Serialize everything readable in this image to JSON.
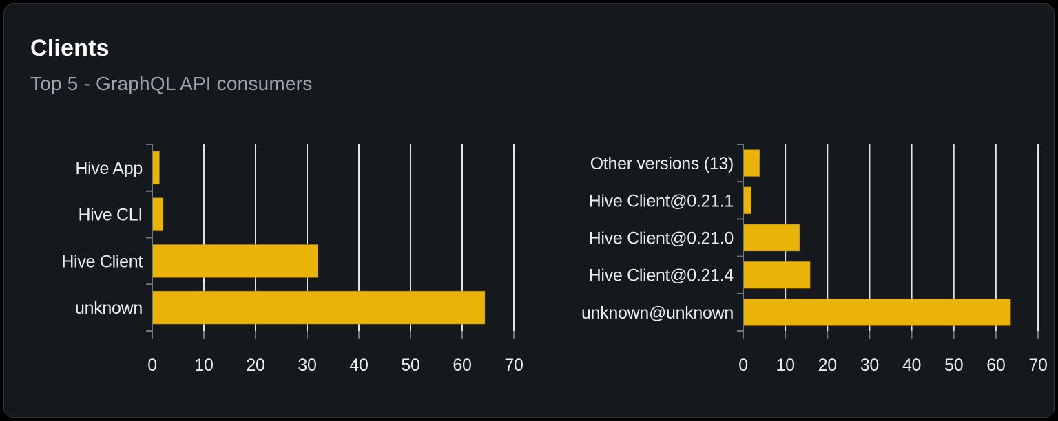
{
  "card": {
    "title": "Clients",
    "subtitle": "Top 5 - GraphQL API consumers"
  },
  "colors": {
    "bar": "#eab308",
    "bar_edge": "#8f6e07",
    "grid": "#dfe2e7",
    "axis": "#70757f",
    "label": "#e9ebee",
    "title": "#ffffff",
    "subtitle": "#9aa2ac",
    "card_bg": "#15181d",
    "card_border": "#2c3036",
    "page_bg": "#000000"
  },
  "chart_data": [
    {
      "type": "bar",
      "name": "clients",
      "orientation": "horizontal",
      "title": "",
      "xlabel": "",
      "ylabel": "",
      "categories": [
        "Hive App",
        "Hive CLI",
        "Hive Client",
        "unknown"
      ],
      "values": [
        1.4,
        2.1,
        32.1,
        64.4
      ],
      "x_ticks": [
        0,
        10,
        20,
        30,
        40,
        50,
        60,
        70
      ],
      "xlim": [
        0,
        70
      ],
      "grid": true,
      "legend": false
    },
    {
      "type": "bar",
      "name": "client-versions",
      "orientation": "horizontal",
      "title": "",
      "xlabel": "",
      "ylabel": "",
      "categories": [
        "Other versions (13)",
        "Hive Client@0.21.1",
        "Hive Client@0.21.0",
        "Hive Client@0.21.4",
        "unknown@unknown"
      ],
      "values": [
        3.9,
        1.9,
        13.4,
        15.9,
        63.5
      ],
      "x_ticks": [
        0,
        10,
        20,
        30,
        40,
        50,
        60,
        70
      ],
      "xlim": [
        0,
        70
      ],
      "grid": true,
      "legend": false
    }
  ]
}
